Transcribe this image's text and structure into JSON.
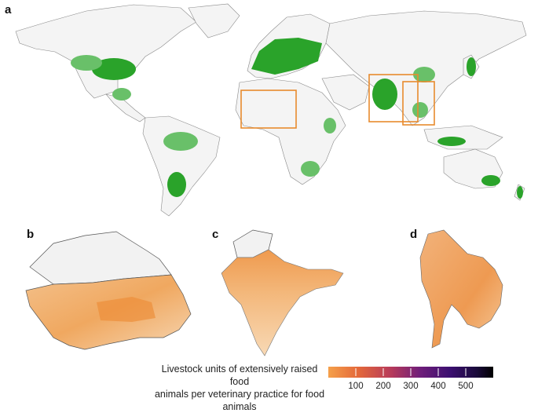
{
  "panels": {
    "a": "a",
    "b": "b",
    "c": "c",
    "d": "d"
  },
  "legend": {
    "title_line1": "Livestock units of extensively raised food",
    "title_line2": "animals per veterinary practice for food animals",
    "ticks": [
      "100",
      "200",
      "300",
      "400",
      "500"
    ],
    "colors": [
      "#f5a04a",
      "#e4693a",
      "#b73a5a",
      "#6e1e7a",
      "#3b0f70",
      "#1a0a3a",
      "#000000"
    ]
  },
  "map_colors": {
    "presence_green": "#2aa32a",
    "inset_box": "#e88a2d",
    "land": "#f4f4f4"
  }
}
